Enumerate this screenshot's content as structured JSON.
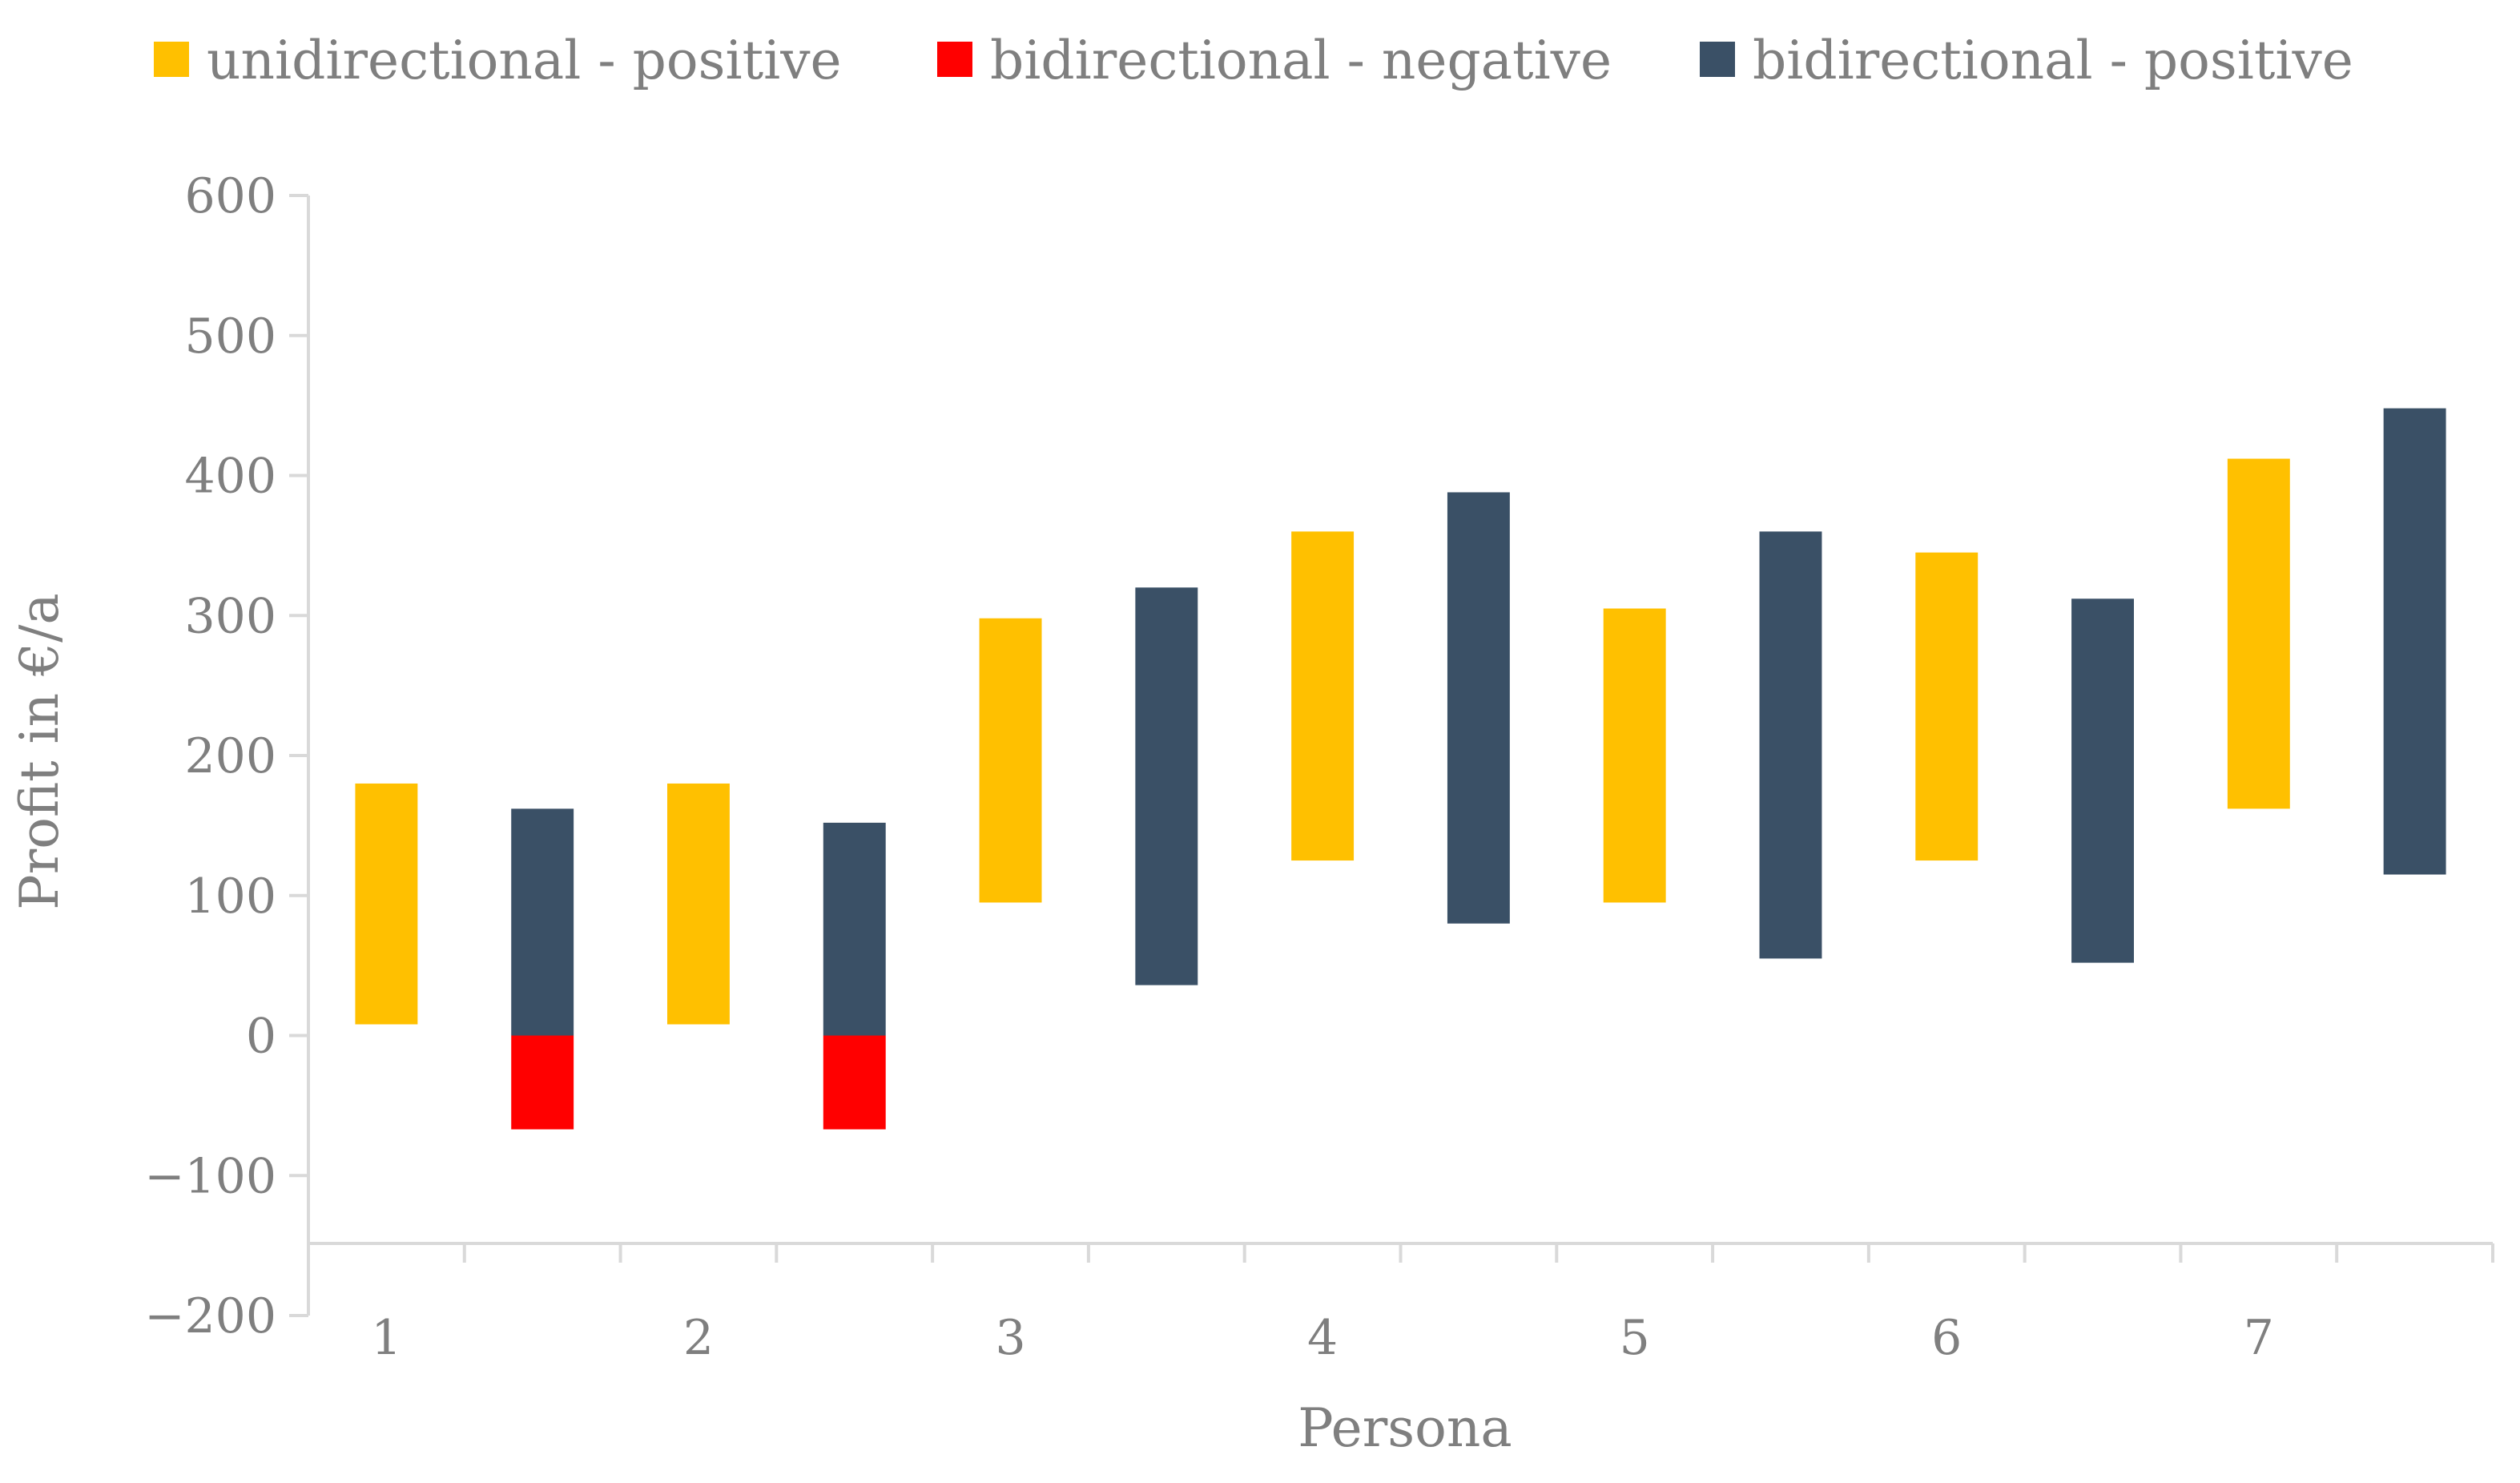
{
  "chart_data": {
    "type": "bar",
    "subtype": "floating-range",
    "title": "",
    "xlabel": "Persona",
    "ylabel": "Profit in €/a",
    "ylim": [
      -200,
      600
    ],
    "yticks": [
      -200,
      -100,
      0,
      100,
      200,
      300,
      400,
      500,
      600
    ],
    "ytick_labels": [
      "−200",
      "−100",
      "0",
      "100",
      "200",
      "300",
      "400",
      "500",
      "600"
    ],
    "categories": [
      "1",
      "2",
      "3",
      "4",
      "5",
      "6",
      "7"
    ],
    "legend_position": "top",
    "series": [
      {
        "name": "unidirectional - positive",
        "color": "#FFC000",
        "slot": 0,
        "ranges": [
          [
            8,
            180
          ],
          [
            8,
            180
          ],
          [
            95,
            298
          ],
          [
            125,
            360
          ],
          [
            95,
            305
          ],
          [
            125,
            345
          ],
          [
            162,
            412
          ]
        ]
      },
      {
        "name": "bidirectional - negative",
        "color": "#FF0000",
        "slot": 1,
        "ranges": [
          [
            -67,
            0
          ],
          [
            -67,
            0
          ],
          null,
          null,
          null,
          null,
          null
        ]
      },
      {
        "name": "bidirectional - positive",
        "color": "#3A5066",
        "slot": 1,
        "ranges": [
          [
            0,
            162
          ],
          [
            0,
            152
          ],
          [
            36,
            320
          ],
          [
            80,
            388
          ],
          [
            55,
            360
          ],
          [
            52,
            312
          ],
          [
            115,
            448
          ]
        ]
      }
    ]
  }
}
